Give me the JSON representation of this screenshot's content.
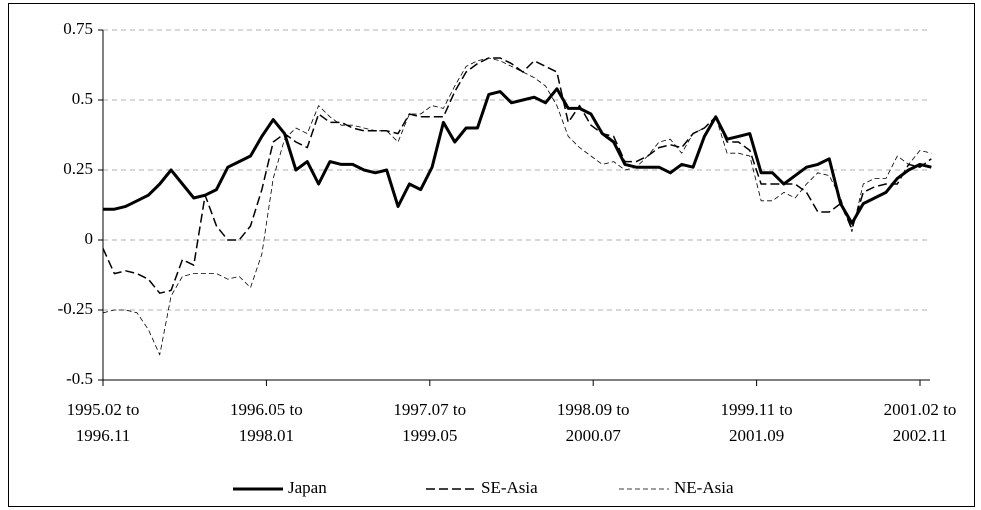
{
  "chart_data": {
    "type": "line",
    "x": [
      0,
      1,
      2,
      3,
      4,
      5,
      6,
      7,
      8,
      9,
      10,
      11,
      12,
      13,
      14,
      15,
      16,
      17,
      18,
      19,
      20,
      21,
      22,
      23,
      24,
      25,
      26,
      27,
      28,
      29,
      30,
      31,
      32,
      33,
      34,
      35,
      36,
      37,
      38,
      39,
      40,
      41,
      42,
      43,
      44,
      45,
      46,
      47,
      48,
      49,
      50,
      51,
      52,
      53,
      54,
      55,
      56,
      57,
      58,
      59,
      60,
      61,
      62,
      63,
      64,
      65,
      66,
      67,
      68,
      69,
      70,
      71,
      72,
      73
    ],
    "series": [
      {
        "name": "Japan",
        "color": "#000000",
        "linestyle": "solid",
        "linewidth": 3,
        "values": [
          0.11,
          0.11,
          0.12,
          0.14,
          0.16,
          0.2,
          0.25,
          0.2,
          0.15,
          0.16,
          0.18,
          0.26,
          0.28,
          0.3,
          0.37,
          0.43,
          0.38,
          0.25,
          0.28,
          0.2,
          0.28,
          0.27,
          0.27,
          0.25,
          0.24,
          0.25,
          0.12,
          0.2,
          0.18,
          0.26,
          0.42,
          0.35,
          0.4,
          0.4,
          0.52,
          0.53,
          0.49,
          0.5,
          0.51,
          0.49,
          0.54,
          0.47,
          0.47,
          0.45,
          0.38,
          0.35,
          0.27,
          0.26,
          0.26,
          0.26,
          0.24,
          0.27,
          0.26,
          0.37,
          0.44,
          0.36,
          0.37,
          0.38,
          0.24,
          0.24,
          0.2,
          0.23,
          0.26,
          0.27,
          0.29,
          0.13,
          0.06,
          0.13,
          0.15,
          0.17,
          0.22,
          0.25,
          0.27,
          0.26
        ]
      },
      {
        "name": "SE-Asia",
        "color": "#000000",
        "linestyle": "dashed",
        "linewidth": 1.5,
        "values": [
          -0.03,
          -0.12,
          -0.11,
          -0.12,
          -0.14,
          -0.19,
          -0.18,
          -0.07,
          -0.09,
          0.16,
          0.05,
          0.0,
          0.0,
          0.05,
          0.18,
          0.35,
          0.38,
          0.35,
          0.33,
          0.45,
          0.42,
          0.42,
          0.4,
          0.39,
          0.39,
          0.39,
          0.38,
          0.45,
          0.44,
          0.44,
          0.44,
          0.53,
          0.6,
          0.63,
          0.65,
          0.65,
          0.63,
          0.6,
          0.64,
          0.62,
          0.6,
          0.42,
          0.48,
          0.41,
          0.38,
          0.37,
          0.28,
          0.28,
          0.3,
          0.33,
          0.34,
          0.33,
          0.38,
          0.4,
          0.44,
          0.35,
          0.35,
          0.32,
          0.2,
          0.2,
          0.2,
          0.2,
          0.17,
          0.1,
          0.1,
          0.13,
          0.04,
          0.17,
          0.19,
          0.2,
          0.2,
          0.27,
          0.26,
          0.29
        ]
      },
      {
        "name": "NE-Asia",
        "color": "#000000",
        "linestyle": "fine-dashed",
        "linewidth": 0.8,
        "values": [
          -0.26,
          -0.25,
          -0.25,
          -0.26,
          -0.32,
          -0.41,
          -0.2,
          -0.13,
          -0.12,
          -0.12,
          -0.12,
          -0.14,
          -0.13,
          -0.17,
          -0.05,
          0.22,
          0.36,
          0.4,
          0.38,
          0.48,
          0.44,
          0.41,
          0.41,
          0.4,
          0.39,
          0.39,
          0.35,
          0.45,
          0.45,
          0.48,
          0.47,
          0.55,
          0.62,
          0.64,
          0.65,
          0.64,
          0.62,
          0.6,
          0.58,
          0.55,
          0.48,
          0.37,
          0.33,
          0.3,
          0.27,
          0.28,
          0.25,
          0.26,
          0.3,
          0.35,
          0.36,
          0.31,
          0.38,
          0.4,
          0.44,
          0.31,
          0.31,
          0.3,
          0.14,
          0.14,
          0.17,
          0.15,
          0.2,
          0.24,
          0.23,
          0.15,
          0.03,
          0.2,
          0.22,
          0.22,
          0.3,
          0.27,
          0.32,
          0.31
        ]
      }
    ],
    "xlim": [
      0,
      72
    ],
    "xticks": [
      {
        "value": 0,
        "label": [
          "1995.02 to",
          "1996.11"
        ]
      },
      {
        "value": 14.4,
        "label": [
          "1996.05 to",
          "1998.01"
        ]
      },
      {
        "value": 28.8,
        "label": [
          "1997.07 to",
          "1999.05"
        ]
      },
      {
        "value": 43.2,
        "label": [
          "1998.09 to",
          "2000.07"
        ]
      },
      {
        "value": 57.6,
        "label": [
          "1999.11 to",
          "2001.09"
        ]
      },
      {
        "value": 72,
        "label": [
          "2001.02 to",
          "2002.11"
        ]
      }
    ],
    "ylim": [
      -0.5,
      0.75
    ],
    "yticks": [
      -0.5,
      -0.25,
      0,
      0.25,
      0.5,
      0.75
    ],
    "grid": true,
    "legend": "bottom"
  }
}
